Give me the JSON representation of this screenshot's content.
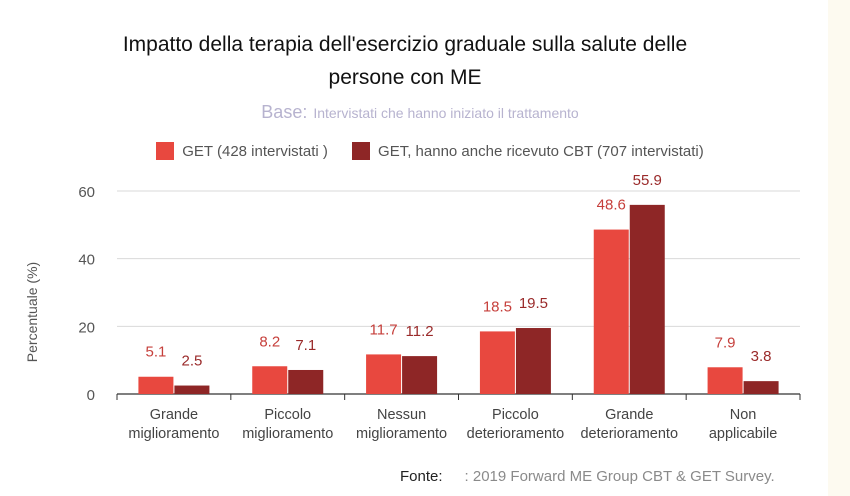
{
  "title_line1": "Impatto della terapia dell'esercizio graduale sulla salute delle",
  "title_line2": "persone con ME",
  "subtitle_key": "Base:",
  "subtitle_text": "Intervistati che hanno iniziato il trattamento",
  "source_key": "Fonte:",
  "source_text": ": 2019 Forward ME Group CBT & GET Survey.",
  "colors": {
    "series1": "#e8483f",
    "series2": "#8e2626",
    "label1": "#c63f3b",
    "label2": "#9a2a2a"
  },
  "chart_data": {
    "type": "bar",
    "ylabel": "Percentuale  (%)",
    "ylim": [
      0,
      60
    ],
    "yticks": [
      "0",
      "20",
      "40",
      "60"
    ],
    "grid": true,
    "legend_position": "top",
    "categories": [
      [
        "Grande",
        "miglioramento"
      ],
      [
        "Piccolo",
        "miglioramento"
      ],
      [
        "Nessun",
        "miglioramento"
      ],
      [
        "Piccolo",
        "deterioramento"
      ],
      [
        "Grande",
        "deterioramento"
      ],
      [
        "Non",
        "applicabile"
      ]
    ],
    "series": [
      {
        "name": "GET (428  intervistati  )",
        "values": [
          5.1,
          8.2,
          11.7,
          18.5,
          48.6,
          7.9
        ],
        "labels": [
          "5.1",
          "8.2",
          "11.7",
          "18.5",
          "48.6",
          "7.9"
        ]
      },
      {
        "name": "GET, hanno anche ricevuto CBT (707 intervistati)",
        "values": [
          2.5,
          7.1,
          11.2,
          19.5,
          55.9,
          3.8
        ],
        "labels": [
          "2.5",
          "7.1",
          "11.2",
          "19.5",
          "55.9",
          "3.8"
        ]
      }
    ]
  }
}
